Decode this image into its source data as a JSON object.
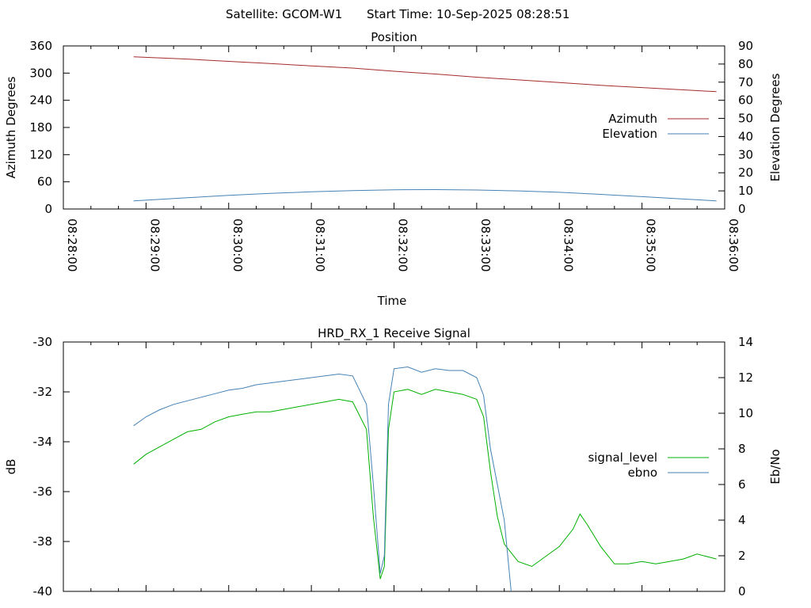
{
  "header": {
    "satellite": "Satellite: GCOM-W1",
    "start_time": "Start Time: 10-Sep-2025 08:28:51"
  },
  "chart_data": [
    {
      "type": "line",
      "title": "Position",
      "xlabel": "Time",
      "ylabel": "Azimuth Degrees",
      "y2label": "Elevation Degrees",
      "xlim": [
        "08:28:00",
        "08:36:00"
      ],
      "ylim": [
        0,
        360
      ],
      "y2lim": [
        0,
        90
      ],
      "x_ticks": [
        "08:28:00",
        "08:29:00",
        "08:30:00",
        "08:31:00",
        "08:32:00",
        "08:33:00",
        "08:34:00",
        "08:35:00",
        "08:36:00"
      ],
      "y_ticks": [
        "0",
        "60",
        "120",
        "180",
        "240",
        "300",
        "360"
      ],
      "y2_ticks": [
        "0",
        "10",
        "20",
        "30",
        "40",
        "50",
        "60",
        "70",
        "80",
        "90"
      ],
      "legend_position": "right",
      "series": [
        {
          "name": "Azimuth",
          "axis": "y",
          "color": "#a52a2a",
          "x": [
            "08:28:51",
            "08:29:30",
            "08:30:00",
            "08:30:30",
            "08:31:00",
            "08:31:30",
            "08:32:00",
            "08:32:30",
            "08:33:00",
            "08:33:30",
            "08:34:00",
            "08:34:30",
            "08:35:00",
            "08:35:30",
            "08:35:54"
          ],
          "y": [
            336,
            331,
            326,
            321,
            316,
            311,
            304,
            298,
            291,
            285,
            279,
            273,
            268,
            263,
            259
          ]
        },
        {
          "name": "Elevation",
          "axis": "y2",
          "color": "#4682b4",
          "x": [
            "08:28:51",
            "08:29:30",
            "08:30:00",
            "08:30:30",
            "08:31:00",
            "08:31:30",
            "08:32:00",
            "08:32:30",
            "08:33:00",
            "08:33:30",
            "08:34:00",
            "08:34:30",
            "08:35:00",
            "08:35:30",
            "08:35:54"
          ],
          "y": [
            4.5,
            6.2,
            7.5,
            8.6,
            9.5,
            10.2,
            10.6,
            10.7,
            10.5,
            10.0,
            9.2,
            8.1,
            6.8,
            5.5,
            4.5
          ]
        }
      ]
    },
    {
      "type": "line",
      "title": "HRD_RX_1 Receive Signal",
      "xlabel": "",
      "ylabel": "dB",
      "y2label": "Eb/No",
      "xlim": [
        "08:28:00",
        "08:36:00"
      ],
      "ylim": [
        -40,
        -30
      ],
      "y2lim": [
        0,
        14
      ],
      "y_ticks": [
        "-40",
        "-38",
        "-36",
        "-34",
        "-32",
        "-30"
      ],
      "y2_ticks": [
        "0",
        "2",
        "4",
        "6",
        "8",
        "10",
        "12",
        "14"
      ],
      "legend_position": "right",
      "series": [
        {
          "name": "signal_level",
          "axis": "y",
          "color": "#00b000",
          "x": [
            "08:28:51",
            "08:29:00",
            "08:29:10",
            "08:29:20",
            "08:29:30",
            "08:29:40",
            "08:29:50",
            "08:30:00",
            "08:30:10",
            "08:30:20",
            "08:30:30",
            "08:30:40",
            "08:30:50",
            "08:31:00",
            "08:31:10",
            "08:31:20",
            "08:31:30",
            "08:31:40",
            "08:31:45",
            "08:31:50",
            "08:31:53",
            "08:31:56",
            "08:32:00",
            "08:32:10",
            "08:32:20",
            "08:32:30",
            "08:32:40",
            "08:32:50",
            "08:33:00",
            "08:33:05",
            "08:33:10",
            "08:33:15",
            "08:33:20",
            "08:33:30",
            "08:33:40",
            "08:33:50",
            "08:34:00",
            "08:34:10",
            "08:34:15",
            "08:34:20",
            "08:34:30",
            "08:34:40",
            "08:34:50",
            "08:35:00",
            "08:35:10",
            "08:35:20",
            "08:35:30",
            "08:35:40",
            "08:35:54"
          ],
          "y": [
            -34.9,
            -34.5,
            -34.2,
            -33.9,
            -33.6,
            -33.5,
            -33.2,
            -33.0,
            -32.9,
            -32.8,
            -32.8,
            -32.7,
            -32.6,
            -32.5,
            -32.4,
            -32.3,
            -32.4,
            -33.5,
            -37.0,
            -39.5,
            -39.0,
            -33.5,
            -32.0,
            -31.9,
            -32.1,
            -31.9,
            -32.0,
            -32.1,
            -32.3,
            -33.0,
            -35.2,
            -37.0,
            -38.1,
            -38.8,
            -39.0,
            -38.6,
            -38.2,
            -37.5,
            -36.9,
            -37.3,
            -38.2,
            -38.9,
            -38.9,
            -38.8,
            -38.9,
            -38.8,
            -38.7,
            -38.5,
            -38.7
          ]
        },
        {
          "name": "ebno",
          "axis": "y2",
          "color": "#4682b4",
          "x": [
            "08:28:51",
            "08:29:00",
            "08:29:10",
            "08:29:20",
            "08:29:30",
            "08:29:40",
            "08:29:50",
            "08:30:00",
            "08:30:10",
            "08:30:20",
            "08:30:30",
            "08:30:40",
            "08:30:50",
            "08:31:00",
            "08:31:10",
            "08:31:20",
            "08:31:30",
            "08:31:40",
            "08:31:45",
            "08:31:50",
            "08:31:53",
            "08:31:56",
            "08:32:00",
            "08:32:10",
            "08:32:20",
            "08:32:30",
            "08:32:40",
            "08:32:50",
            "08:33:00",
            "08:33:05",
            "08:33:10",
            "08:33:15",
            "08:33:20",
            "08:33:25"
          ],
          "y": [
            9.3,
            9.8,
            10.2,
            10.5,
            10.7,
            10.9,
            11.1,
            11.3,
            11.4,
            11.6,
            11.7,
            11.8,
            11.9,
            12.0,
            12.1,
            12.2,
            12.1,
            10.5,
            6.0,
            1.0,
            2.0,
            10.5,
            12.5,
            12.6,
            12.3,
            12.5,
            12.4,
            12.4,
            12.0,
            11.0,
            8.0,
            6.0,
            4.0,
            0.0
          ]
        }
      ]
    }
  ]
}
